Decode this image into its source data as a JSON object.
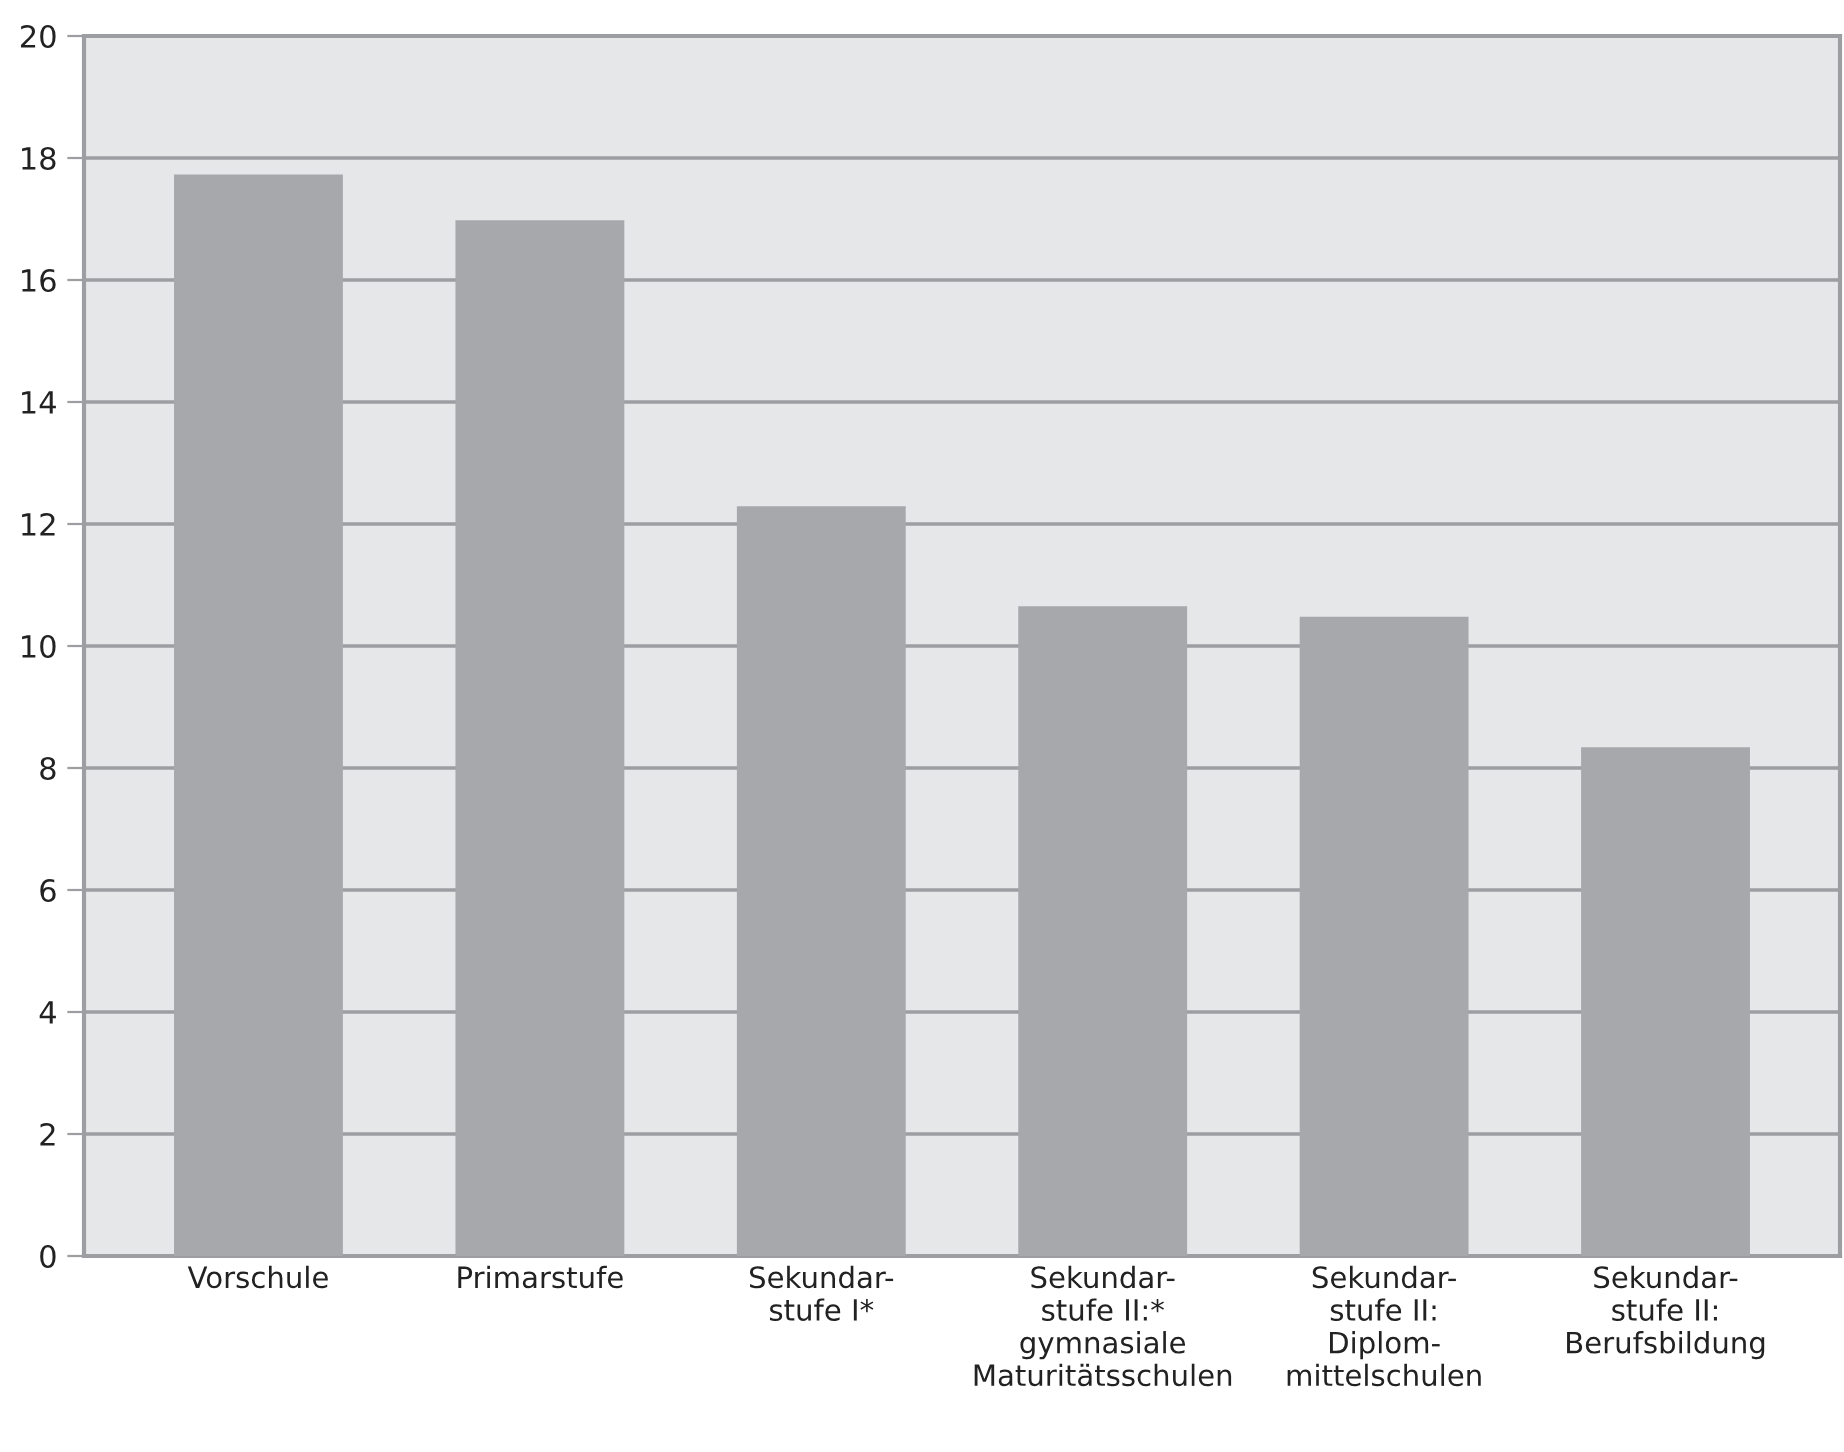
{
  "chart_data": {
    "type": "bar",
    "categories": [
      "Vorschule",
      "Primarstufe",
      "Sekundar-\nstufe I*",
      "Sekundar-\nstufe II:*\ngymnasiale\nMaturitätsschulen",
      "Sekundar-\nstufe II:\nDiplom-\nmittelschulen",
      "Sekundar-\nstufe II:\nBerufsbildung"
    ],
    "values": [
      17.73,
      16.98,
      12.29,
      10.65,
      10.48,
      8.34
    ],
    "color": "#a7a8ac",
    "ylim": [
      0,
      20
    ],
    "yticks": [
      0,
      2,
      4,
      6,
      8,
      10,
      12,
      14,
      16,
      18,
      20
    ],
    "grid": "y"
  }
}
